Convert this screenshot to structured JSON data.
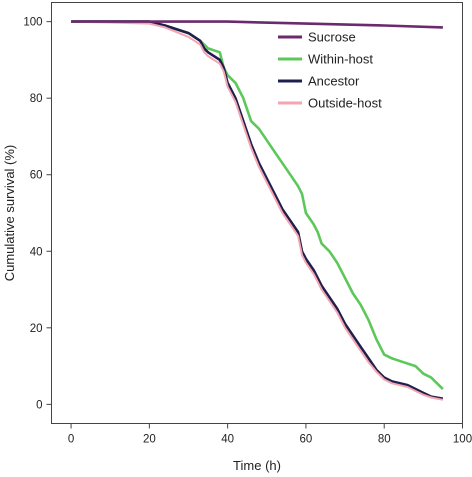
{
  "chart_data": {
    "type": "line",
    "title": "",
    "xlabel": "Time (h)",
    "ylabel": "Cumulative survival (%)",
    "xlim": [
      -5,
      100
    ],
    "ylim": [
      -5,
      105
    ],
    "xticks": [
      "0",
      "20",
      "40",
      "60",
      "80",
      "100"
    ],
    "yticks": [
      "0",
      "20",
      "40",
      "60",
      "80",
      "100"
    ],
    "grid": false,
    "legend_position": "top-right",
    "series": [
      {
        "name": "Sucrose",
        "color": "#6b2a6e",
        "x": [
          0,
          20,
          40,
          60,
          80,
          95
        ],
        "y": [
          100,
          100,
          100,
          99.5,
          99,
          98.5
        ]
      },
      {
        "name": "Within-host",
        "color": "#5cc85a",
        "x": [
          0,
          20,
          24,
          30,
          33,
          34,
          35,
          38,
          39,
          40,
          42,
          44,
          45,
          46,
          48,
          50,
          52,
          54,
          56,
          58,
          59,
          60,
          62,
          63,
          64,
          66,
          68,
          70,
          72,
          74,
          76,
          78,
          80,
          82,
          85,
          88,
          90,
          92,
          95
        ],
        "y": [
          100,
          100,
          99,
          97,
          95,
          94,
          93,
          92,
          88,
          86,
          84,
          80,
          77,
          74,
          72,
          69,
          66,
          63,
          60,
          57,
          55,
          50,
          47,
          45,
          42,
          40,
          37,
          33,
          29,
          26,
          22,
          17,
          13,
          12,
          11,
          10,
          8,
          7,
          4
        ]
      },
      {
        "name": "Ancestor",
        "color": "#1f1f4e",
        "x": [
          0,
          20,
          24,
          30,
          33,
          34,
          35,
          38,
          39,
          40,
          42,
          44,
          46,
          48,
          50,
          52,
          54,
          56,
          58,
          59,
          60,
          62,
          64,
          66,
          68,
          70,
          72,
          74,
          76,
          78,
          80,
          82,
          84,
          86,
          88,
          90,
          92,
          95
        ],
        "y": [
          100,
          100,
          99,
          97,
          95,
          93,
          92,
          90,
          88,
          84,
          80,
          74,
          68,
          63,
          59,
          55,
          51,
          48,
          45,
          40,
          38,
          35,
          31,
          28,
          25,
          21,
          18,
          15,
          12,
          9,
          7,
          6,
          5.5,
          5,
          4,
          3,
          2,
          1.5
        ]
      },
      {
        "name": "Outside-host",
        "color": "#f3a6b2",
        "x": [
          0,
          20,
          24,
          30,
          33,
          34,
          35,
          38,
          39,
          40,
          42,
          44,
          46,
          48,
          50,
          52,
          54,
          56,
          58,
          59,
          60,
          62,
          64,
          66,
          68,
          70,
          72,
          74,
          76,
          78,
          80,
          82,
          84,
          86,
          88,
          90,
          92,
          95
        ],
        "y": [
          100,
          99.5,
          98.5,
          96,
          94,
          92,
          91,
          89,
          87,
          83,
          79,
          73,
          67,
          62,
          58,
          54,
          50,
          47,
          44,
          39,
          37,
          34,
          30,
          27,
          24,
          20,
          17,
          14,
          11,
          8.5,
          6.5,
          5.5,
          5,
          4.5,
          3.5,
          2.5,
          1.8,
          1.2
        ]
      }
    ]
  }
}
